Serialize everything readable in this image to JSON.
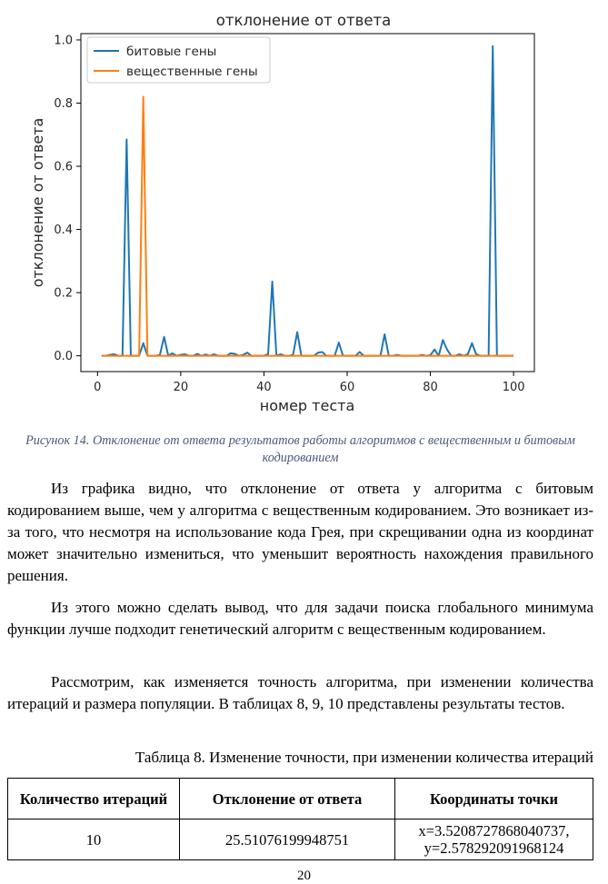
{
  "chart_data": {
    "type": "line",
    "title": "отклонение от ответа",
    "xlabel": "номер теста",
    "ylabel": "отклонение от ответа",
    "xlim": [
      -4,
      105
    ],
    "ylim": [
      -0.05,
      1.02
    ],
    "xticks": [
      0,
      20,
      40,
      60,
      80,
      100
    ],
    "yticks": [
      0.0,
      0.2,
      0.4,
      0.6,
      0.8,
      1.0
    ],
    "grid": false,
    "legend": "top-left",
    "series": [
      {
        "name": "битовые гены",
        "color": "#1f77b4",
        "x": [
          1,
          2,
          3,
          4,
          5,
          6,
          7,
          8,
          9,
          10,
          11,
          12,
          13,
          14,
          15,
          16,
          17,
          18,
          19,
          20,
          21,
          22,
          23,
          24,
          25,
          26,
          27,
          28,
          29,
          30,
          31,
          32,
          33,
          34,
          35,
          36,
          37,
          38,
          39,
          40,
          41,
          42,
          43,
          44,
          45,
          46,
          47,
          48,
          49,
          50,
          51,
          52,
          53,
          54,
          55,
          56,
          57,
          58,
          59,
          60,
          61,
          62,
          63,
          64,
          65,
          66,
          67,
          68,
          69,
          70,
          71,
          72,
          73,
          74,
          75,
          76,
          77,
          78,
          79,
          80,
          81,
          82,
          83,
          84,
          85,
          86,
          87,
          88,
          89,
          90,
          91,
          92,
          93,
          94,
          95,
          96,
          97,
          98,
          99,
          100
        ],
        "y": [
          0,
          0,
          0.003,
          0.005,
          0,
          0,
          0.685,
          0,
          0,
          0,
          0.04,
          0,
          0,
          0,
          0.003,
          0.06,
          0,
          0.008,
          0,
          0.003,
          0.005,
          0,
          0,
          0.006,
          0,
          0.004,
          0,
          0.005,
          0,
          0,
          0,
          0.008,
          0.006,
          0,
          0.003,
          0.01,
          0,
          0,
          0,
          0,
          0.005,
          0.235,
          0,
          0.005,
          0,
          0,
          0.003,
          0.075,
          0,
          0,
          0,
          0,
          0.01,
          0.012,
          0,
          0,
          0,
          0.042,
          0,
          0,
          0,
          0,
          0.012,
          0,
          0,
          0,
          0,
          0,
          0.068,
          0,
          0,
          0.003,
          0,
          0,
          0,
          0,
          0,
          0.003,
          0,
          0.002,
          0.02,
          0,
          0.05,
          0.02,
          0,
          0,
          0.005,
          0,
          0.005,
          0.04,
          0.005,
          0,
          0,
          0,
          0.98,
          0,
          0,
          0,
          0,
          0
        ]
      },
      {
        "name": "вещественные гены",
        "color": "#ff7f0e",
        "x": [
          1,
          2,
          3,
          4,
          5,
          6,
          7,
          8,
          9,
          10,
          11,
          12,
          13,
          14,
          15,
          16,
          17,
          18,
          19,
          20,
          21,
          22,
          23,
          24,
          25,
          26,
          27,
          28,
          29,
          30,
          31,
          32,
          33,
          34,
          35,
          36,
          37,
          38,
          39,
          40,
          41,
          42,
          43,
          44,
          45,
          46,
          47,
          48,
          49,
          50,
          51,
          52,
          53,
          54,
          55,
          56,
          57,
          58,
          59,
          60,
          61,
          62,
          63,
          64,
          65,
          66,
          67,
          68,
          69,
          70,
          71,
          72,
          73,
          74,
          75,
          76,
          77,
          78,
          79,
          80,
          81,
          82,
          83,
          84,
          85,
          86,
          87,
          88,
          89,
          90,
          91,
          92,
          93,
          94,
          95,
          96,
          97,
          98,
          99,
          100
        ],
        "y": [
          0,
          0,
          0,
          0,
          0,
          0,
          0,
          0,
          0,
          0,
          0.82,
          0,
          0,
          0,
          0,
          0,
          0,
          0,
          0,
          0,
          0,
          0,
          0,
          0,
          0,
          0,
          0,
          0,
          0,
          0,
          0,
          0,
          0,
          0,
          0,
          0,
          0,
          0,
          0,
          0,
          0,
          0,
          0,
          0,
          0,
          0,
          0,
          0,
          0,
          0,
          0,
          0,
          0,
          0,
          0,
          0,
          0,
          0,
          0,
          0,
          0,
          0,
          0,
          0,
          0,
          0,
          0,
          0,
          0,
          0,
          0,
          0,
          0,
          0,
          0,
          0,
          0,
          0,
          0,
          0,
          0,
          0,
          0,
          0,
          0,
          0,
          0,
          0,
          0,
          0,
          0,
          0,
          0,
          0,
          0,
          0,
          0,
          0,
          0,
          0
        ]
      }
    ]
  },
  "caption": "Рисунок 14. Отклонение от ответа результатов работы алгоритмов с вещественным и битовым кодированием",
  "paragraphs": [
    "Из графика видно, что отклонение от ответа у алгоритма с битовым кодированием выше, чем у алгоритма с вещественным кодированием. Это возникает из-за того, что несмотря на использование кода Грея, при скрещивании одна из координат может значительно измениться, что уменьшит вероятность нахождения правильного решения.",
    "Из этого можно сделать вывод, что для задачи поиска глобального минимума функции лучше подходит генетический алгоритм с вещественным кодированием.",
    "Рассмотрим, как изменяется точность алгоритма, при изменении количества итераций и размера популяции. В таблицах 8, 9, 10 представлены результаты тестов."
  ],
  "table_caption": "Таблица 8. Изменение точности, при изменении количества итераций",
  "table": {
    "headers": [
      "Количество итераций",
      "Отклонение от ответа",
      "Координаты точки"
    ],
    "rows": [
      [
        "10",
        "25.51076199948751",
        "x=3.5208727868040737, y=2.578292091968124"
      ]
    ]
  },
  "page_number": "20"
}
